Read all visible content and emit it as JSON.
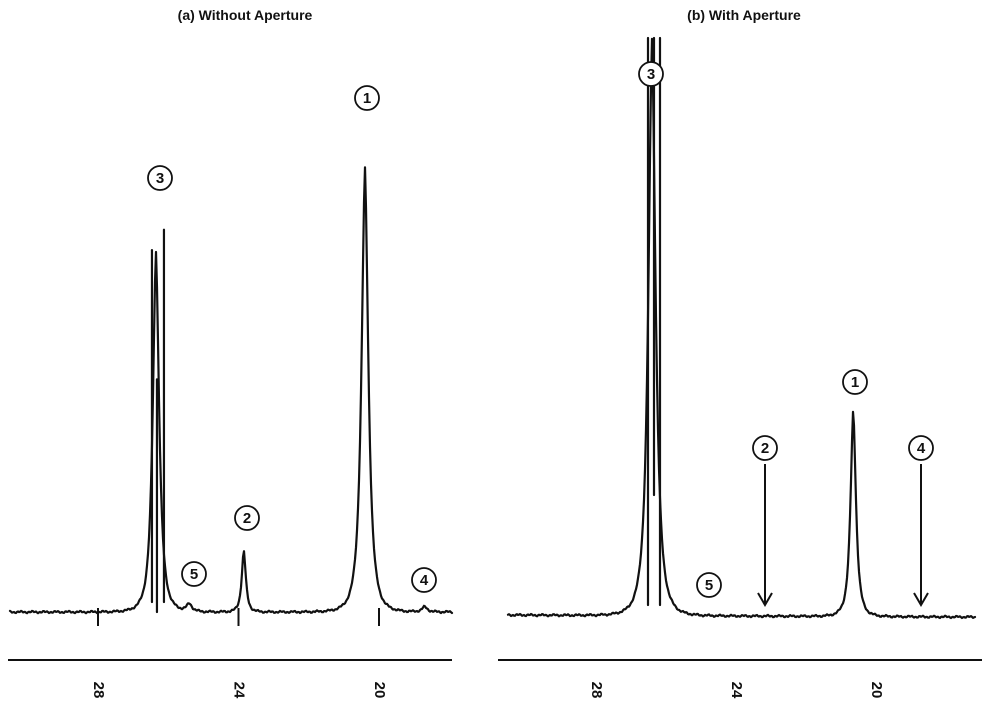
{
  "chart_data": [
    {
      "type": "line",
      "title": "(a) Without Aperture",
      "xlabel": "",
      "ylabel": "",
      "x_reversed": true,
      "x_ticks": [
        28,
        24,
        20
      ],
      "peaks": [
        {
          "label": "1",
          "x": 20.4,
          "height": 0.86,
          "width": 0.15
        },
        {
          "label": "2",
          "x": 23.85,
          "height": 0.12,
          "width": 0.09
        },
        {
          "label": "3",
          "x": 26.35,
          "height": 0.7,
          "width": 0.14,
          "split": true,
          "height_b": 0.72
        },
        {
          "label": "4",
          "x": 18.7,
          "height": 0.01,
          "width": 0.12
        },
        {
          "label": "5",
          "x": 25.4,
          "height": 0.015,
          "width": 0.12
        }
      ]
    },
    {
      "type": "line",
      "title": "(b) With Aperture",
      "xlabel": "",
      "ylabel": "",
      "x_reversed": true,
      "x_ticks": [
        28,
        24,
        20
      ],
      "peaks": [
        {
          "label": "1",
          "x": 20.65,
          "height": 0.36,
          "width": 0.12
        },
        {
          "label": "2",
          "x": 23.6,
          "height": 0.0,
          "width": 0.1,
          "arrow": true
        },
        {
          "label": "3",
          "x": 26.4,
          "height": 1.0,
          "width": 0.16,
          "split": true,
          "offscale": true
        },
        {
          "label": "4",
          "x": 18.7,
          "height": 0.0,
          "width": 0.1,
          "arrow": true
        },
        {
          "label": "5",
          "x": 25.6,
          "height": 0.0,
          "width": 0.1
        }
      ]
    }
  ]
}
